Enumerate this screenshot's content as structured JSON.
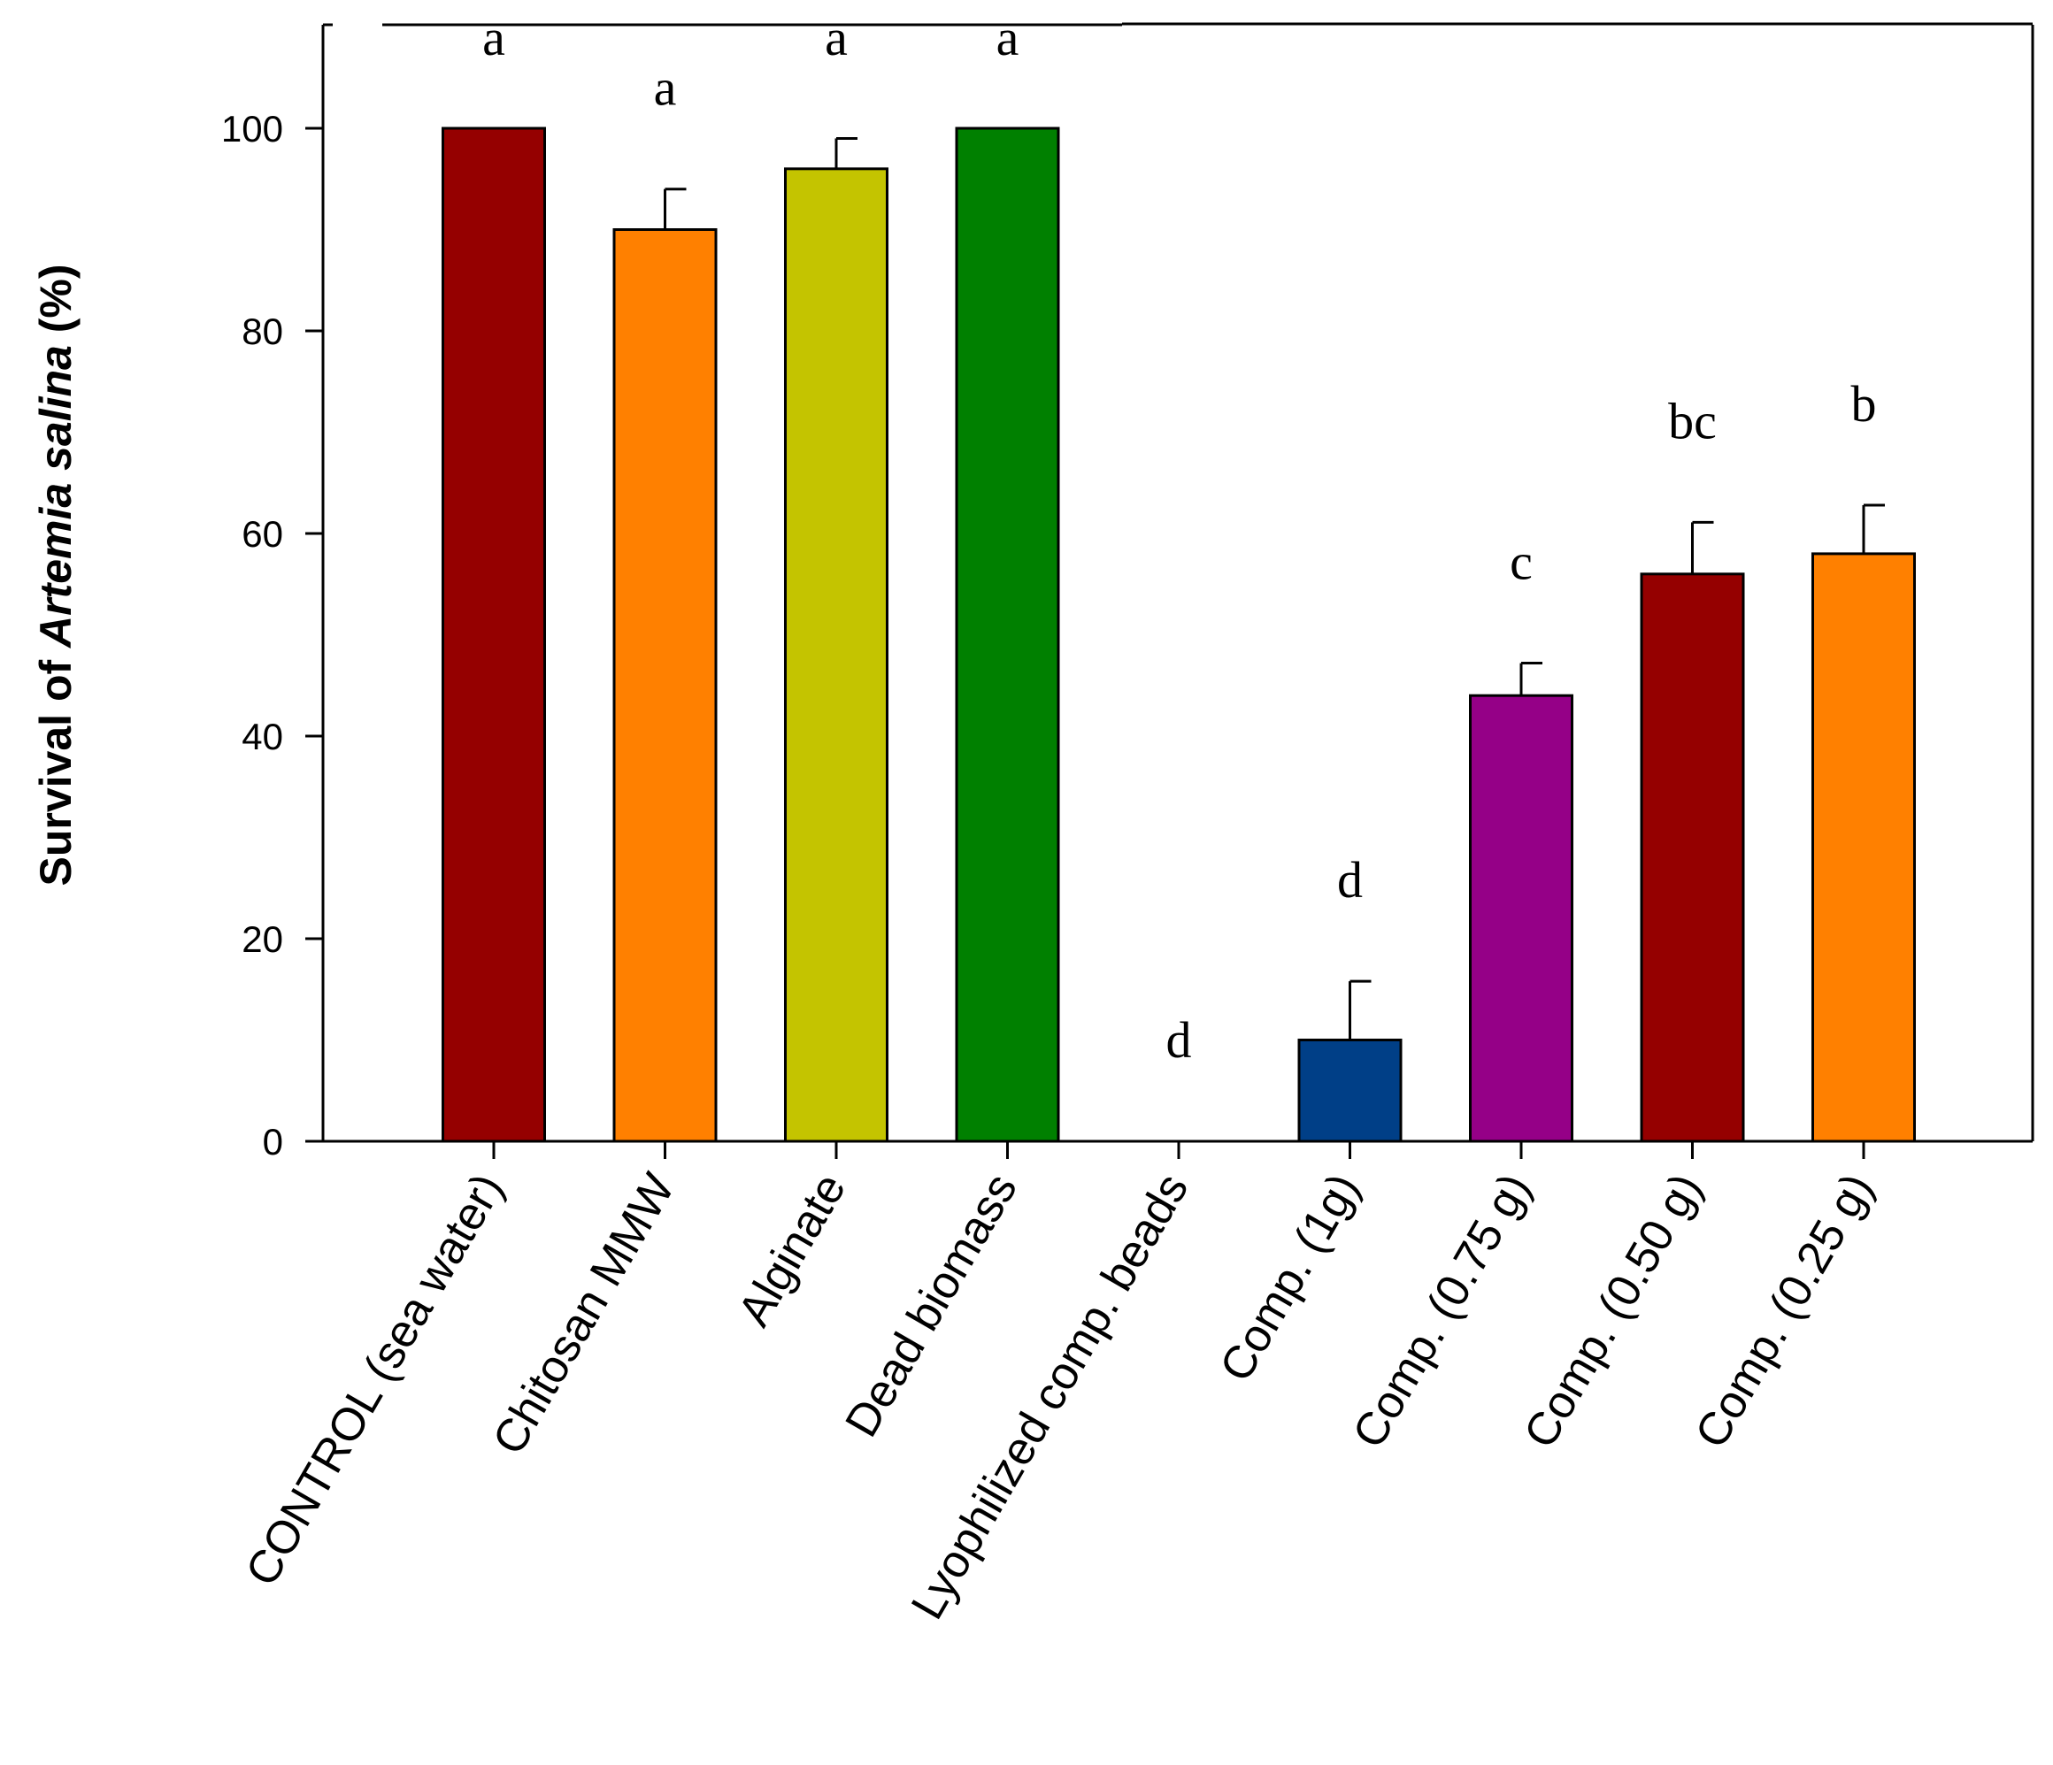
{
  "chart_data": {
    "type": "bar",
    "title": "",
    "xlabel": "",
    "ylabel": {
      "prefix": "Survival of ",
      "italic": "Artemia salina",
      "suffix": " (%)"
    },
    "ylim": [
      0,
      110
    ],
    "yticks": [
      0,
      20,
      40,
      60,
      80,
      100
    ],
    "grid": false,
    "legend": "none",
    "categories": [
      "CONTROL (sea water)",
      "Chitosan MMW",
      "Alginate",
      "Dead biomass",
      "Lyophilized comp. beads",
      "Comp.  (1g)",
      "Comp.  (0.75 g)",
      "Comp.  (0.50 g)",
      "Comp.  (0.25 g)"
    ],
    "values": [
      100,
      90,
      96,
      100,
      0,
      10,
      44,
      56,
      58
    ],
    "errors": [
      0,
      4,
      3,
      0,
      0,
      5.8,
      3.2,
      5.1,
      4.8
    ],
    "colors": [
      "#950000",
      "#ff8000",
      "#c4c400",
      "#008000",
      "#ffffff",
      "#003f87",
      "#950087",
      "#950000",
      "#ff8000"
    ],
    "significance_letters": [
      "a",
      "a",
      "a",
      "a",
      "d",
      "d",
      "c",
      "bc",
      "b"
    ]
  }
}
